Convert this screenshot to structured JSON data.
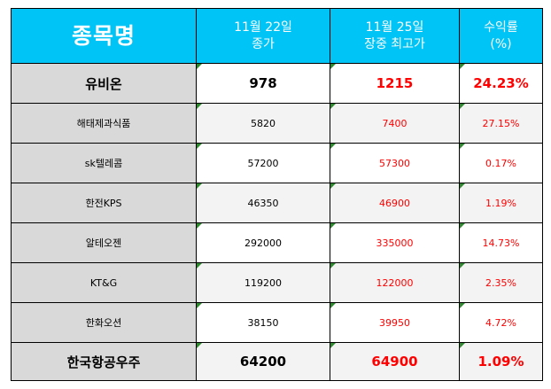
{
  "header": {
    "name": "종목명",
    "close_date": "11월 22일",
    "close_label": "종가",
    "high_date": "11월 25일",
    "high_label": "장중 최고가",
    "return_label": "수익률",
    "return_unit": "(%)"
  },
  "rows": [
    {
      "name": "유비온",
      "close": "978",
      "high": "1215",
      "return": "24.23%"
    },
    {
      "name": "해태제과식품",
      "close": "5820",
      "high": "7400",
      "return": "27.15%"
    },
    {
      "name": "sk텔레콤",
      "close": "57200",
      "high": "57300",
      "return": "0.17%"
    },
    {
      "name": "한전KPS",
      "close": "46350",
      "high": "46900",
      "return": "1.19%"
    },
    {
      "name": "알테오젠",
      "close": "292000",
      "high": "335000",
      "return": "14.73%"
    },
    {
      "name": "KT&G",
      "close": "119200",
      "high": "122000",
      "return": "2.35%"
    },
    {
      "name": "한화오션",
      "close": "38150",
      "high": "39950",
      "return": "4.72%"
    },
    {
      "name": "한국항공우주",
      "close": "64200",
      "high": "64900",
      "return": "1.09%"
    }
  ],
  "colors": {
    "header_bg": "#00c3f6",
    "name_bg": "#d9d9d9",
    "high_text": "#ff0000",
    "return_text": "#ff0000"
  }
}
